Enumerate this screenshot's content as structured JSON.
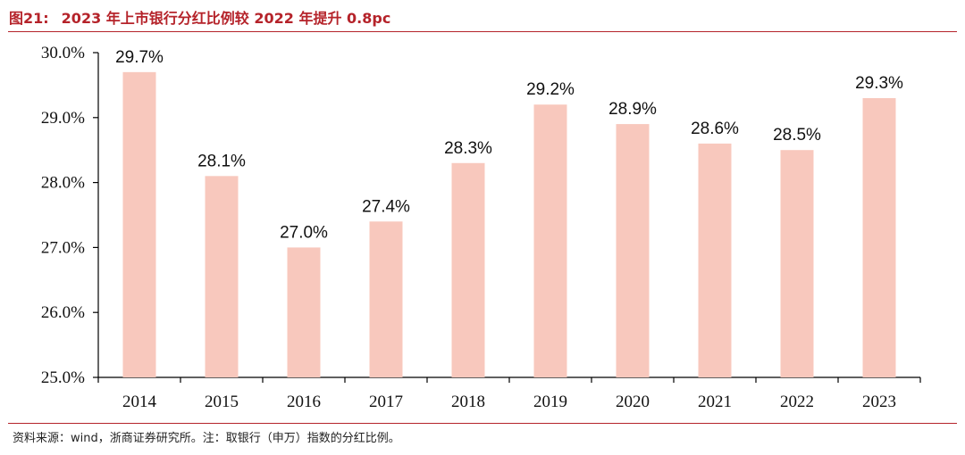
{
  "figure": {
    "label": "图21:",
    "title": "2023 年上市银行分红比例较 2022 年提升 0.8pc"
  },
  "source_note": "资料来源：wind，浙商证券研究所。注：取银行（申万）指数的分红比例。",
  "colors": {
    "bar": "#f8c8bd",
    "accent": "#b5232a",
    "axis": "#000000"
  },
  "chart_data": {
    "type": "bar",
    "categories": [
      "2014",
      "2015",
      "2016",
      "2017",
      "2018",
      "2019",
      "2020",
      "2021",
      "2022",
      "2023"
    ],
    "values": [
      29.7,
      28.1,
      27.0,
      27.4,
      28.3,
      29.2,
      28.9,
      28.6,
      28.5,
      29.3
    ],
    "data_labels": [
      "29.7%",
      "28.1%",
      "27.0%",
      "27.4%",
      "28.3%",
      "29.2%",
      "28.9%",
      "28.6%",
      "28.5%",
      "29.3%"
    ],
    "yticks": [
      25,
      26,
      27,
      28,
      29,
      30
    ],
    "ytick_labels": [
      "25.0%",
      "26.0%",
      "27.0%",
      "28.0%",
      "29.0%",
      "30.0%"
    ],
    "ylim": [
      25,
      30
    ],
    "grid": false,
    "legend": "none"
  }
}
